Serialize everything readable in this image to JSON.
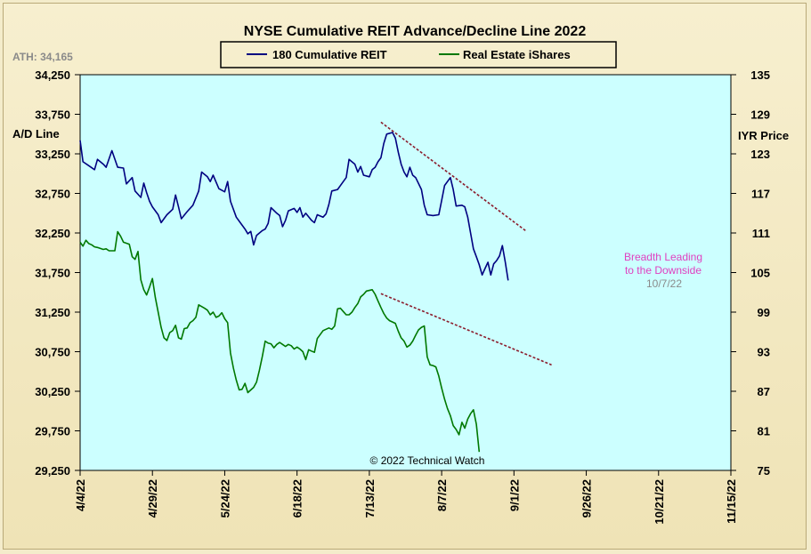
{
  "chart_data": {
    "type": "line",
    "title": "NYSE Cumulative  REIT Advance/Decline  Line  2022",
    "ath_label": "ATH: 34,165",
    "left_axis": {
      "label": "A/D Line",
      "ticks": [
        "34,250",
        "33,750",
        "33,250",
        "32,750",
        "32,250",
        "31,750",
        "31,250",
        "30,750",
        "30,250",
        "29,750",
        "29,250"
      ],
      "range": [
        29250,
        34250
      ]
    },
    "right_axis": {
      "label": "IYR Price",
      "ticks": [
        "135",
        "129",
        "123",
        "117",
        "111",
        "105",
        "99",
        "93",
        "87",
        "81",
        "75"
      ],
      "range": [
        75,
        135
      ]
    },
    "x_axis": {
      "ticks": [
        "4/4/22",
        "4/29/22",
        "5/24/22",
        "6/18/22",
        "7/13/22",
        "8/7/22",
        "9/1/22",
        "9/26/22",
        "10/21/22",
        "11/15/22"
      ],
      "range_days": [
        0,
        225
      ],
      "tick_days": [
        0,
        25,
        50,
        75,
        100,
        125,
        150,
        175,
        200,
        225
      ]
    },
    "legend": {
      "position": "top-center",
      "series_labels": [
        "180 Cumulative REIT",
        "Real Estate iShares"
      ]
    },
    "grid": false,
    "series": [
      {
        "name": "180 Cumulative REIT",
        "axis": "left",
        "color": "#000080",
        "points": [
          [
            0,
            33420
          ],
          [
            1,
            33150
          ],
          [
            3,
            33100
          ],
          [
            5,
            33050
          ],
          [
            6,
            33180
          ],
          [
            8,
            33120
          ],
          [
            9,
            33080
          ],
          [
            11,
            33290
          ],
          [
            13,
            33080
          ],
          [
            15,
            33070
          ],
          [
            16,
            32870
          ],
          [
            18,
            32950
          ],
          [
            19,
            32780
          ],
          [
            21,
            32700
          ],
          [
            22,
            32880
          ],
          [
            23,
            32760
          ],
          [
            24,
            32650
          ],
          [
            25,
            32580
          ],
          [
            27,
            32480
          ],
          [
            28,
            32380
          ],
          [
            30,
            32480
          ],
          [
            32,
            32550
          ],
          [
            33,
            32730
          ],
          [
            34,
            32580
          ],
          [
            35,
            32430
          ],
          [
            37,
            32520
          ],
          [
            39,
            32600
          ],
          [
            41,
            32780
          ],
          [
            42,
            33020
          ],
          [
            44,
            32960
          ],
          [
            45,
            32900
          ],
          [
            46,
            32980
          ],
          [
            48,
            32810
          ],
          [
            50,
            32770
          ],
          [
            51,
            32900
          ],
          [
            52,
            32650
          ],
          [
            54,
            32450
          ],
          [
            56,
            32350
          ],
          [
            57,
            32300
          ],
          [
            58,
            32240
          ],
          [
            59,
            32270
          ],
          [
            60,
            32100
          ],
          [
            61,
            32220
          ],
          [
            63,
            32280
          ],
          [
            64,
            32300
          ],
          [
            65,
            32370
          ],
          [
            66,
            32570
          ],
          [
            68,
            32500
          ],
          [
            69,
            32470
          ],
          [
            70,
            32330
          ],
          [
            71,
            32410
          ],
          [
            72,
            32530
          ],
          [
            74,
            32560
          ],
          [
            75,
            32510
          ],
          [
            76,
            32570
          ],
          [
            77,
            32450
          ],
          [
            78,
            32500
          ],
          [
            80,
            32410
          ],
          [
            81,
            32380
          ],
          [
            82,
            32480
          ],
          [
            84,
            32450
          ],
          [
            85,
            32490
          ],
          [
            86,
            32610
          ],
          [
            87,
            32780
          ],
          [
            89,
            32800
          ],
          [
            91,
            32900
          ],
          [
            92,
            32950
          ],
          [
            93,
            33180
          ],
          [
            95,
            33120
          ],
          [
            96,
            33020
          ],
          [
            97,
            33090
          ],
          [
            98,
            32980
          ],
          [
            100,
            32960
          ],
          [
            101,
            33050
          ],
          [
            102,
            33080
          ],
          [
            103,
            33150
          ],
          [
            104,
            33200
          ],
          [
            105,
            33380
          ],
          [
            106,
            33500
          ],
          [
            108,
            33520
          ],
          [
            109,
            33450
          ],
          [
            110,
            33270
          ],
          [
            111,
            33120
          ],
          [
            112,
            33020
          ],
          [
            113,
            32960
          ],
          [
            114,
            33080
          ],
          [
            115,
            32980
          ],
          [
            116,
            32950
          ],
          [
            118,
            32800
          ],
          [
            119,
            32600
          ],
          [
            120,
            32480
          ],
          [
            122,
            32470
          ],
          [
            124,
            32480
          ],
          [
            125,
            32660
          ],
          [
            126,
            32850
          ],
          [
            128,
            32950
          ],
          [
            129,
            32800
          ],
          [
            130,
            32590
          ],
          [
            132,
            32600
          ],
          [
            133,
            32580
          ],
          [
            134,
            32450
          ],
          [
            135,
            32250
          ],
          [
            136,
            32050
          ],
          [
            137,
            31950
          ],
          [
            138,
            31850
          ],
          [
            139,
            31720
          ],
          [
            140,
            31800
          ],
          [
            141,
            31880
          ],
          [
            142,
            31720
          ],
          [
            143,
            31860
          ],
          [
            144,
            31900
          ],
          [
            145,
            31960
          ],
          [
            146,
            32090
          ],
          [
            147,
            31880
          ],
          [
            148,
            31650
          ]
        ]
      },
      {
        "name": "Real Estate iShares",
        "axis": "right",
        "color": "#007800",
        "points": [
          [
            0,
            109.6
          ],
          [
            1,
            109.0
          ],
          [
            2,
            109.9
          ],
          [
            3,
            109.4
          ],
          [
            4,
            109.2
          ],
          [
            5,
            108.9
          ],
          [
            6,
            108.8
          ],
          [
            8,
            108.5
          ],
          [
            9,
            108.6
          ],
          [
            10,
            108.3
          ],
          [
            12,
            108.3
          ],
          [
            13,
            111.2
          ],
          [
            14,
            110.5
          ],
          [
            15,
            109.6
          ],
          [
            17,
            109.3
          ],
          [
            18,
            107.4
          ],
          [
            19,
            107.0
          ],
          [
            20,
            108.2
          ],
          [
            21,
            103.9
          ],
          [
            22,
            102.4
          ],
          [
            23,
            101.6
          ],
          [
            24,
            102.8
          ],
          [
            25,
            104.1
          ],
          [
            26,
            101.2
          ],
          [
            28,
            96.7
          ],
          [
            29,
            95.1
          ],
          [
            30,
            94.7
          ],
          [
            31,
            95.9
          ],
          [
            32,
            96.2
          ],
          [
            33,
            97.0
          ],
          [
            34,
            95.1
          ],
          [
            35,
            94.9
          ],
          [
            36,
            96.5
          ],
          [
            37,
            96.6
          ],
          [
            38,
            97.4
          ],
          [
            39,
            97.7
          ],
          [
            40,
            98.2
          ],
          [
            41,
            100.1
          ],
          [
            43,
            99.6
          ],
          [
            44,
            99.3
          ],
          [
            45,
            98.6
          ],
          [
            46,
            99.0
          ],
          [
            47,
            98.2
          ],
          [
            48,
            98.4
          ],
          [
            49,
            98.9
          ],
          [
            50,
            98.0
          ],
          [
            51,
            97.4
          ],
          [
            52,
            92.8
          ],
          [
            53,
            90.5
          ],
          [
            54,
            88.7
          ],
          [
            55,
            87.2
          ],
          [
            56,
            87.3
          ],
          [
            57,
            88.2
          ],
          [
            58,
            86.8
          ],
          [
            59,
            87.2
          ],
          [
            60,
            87.6
          ],
          [
            61,
            88.4
          ],
          [
            62,
            90.2
          ],
          [
            63,
            92.3
          ],
          [
            64,
            94.6
          ],
          [
            65,
            94.3
          ],
          [
            66,
            94.2
          ],
          [
            67,
            93.6
          ],
          [
            68,
            94.1
          ],
          [
            69,
            94.4
          ],
          [
            70,
            94.1
          ],
          [
            71,
            93.8
          ],
          [
            72,
            94.1
          ],
          [
            73,
            93.9
          ],
          [
            74,
            93.4
          ],
          [
            75,
            93.7
          ],
          [
            76,
            93.4
          ],
          [
            77,
            93.0
          ],
          [
            78,
            91.8
          ],
          [
            79,
            93.3
          ],
          [
            80,
            93.1
          ],
          [
            81,
            92.9
          ],
          [
            82,
            95.0
          ],
          [
            84,
            96.2
          ],
          [
            86,
            96.6
          ],
          [
            87,
            96.4
          ],
          [
            88,
            96.9
          ],
          [
            89,
            99.5
          ],
          [
            90,
            99.6
          ],
          [
            91,
            99.1
          ],
          [
            92,
            98.6
          ],
          [
            93,
            98.6
          ],
          [
            94,
            99.0
          ],
          [
            95,
            99.7
          ],
          [
            96,
            100.3
          ],
          [
            97,
            101.3
          ],
          [
            98,
            101.7
          ],
          [
            99,
            102.2
          ],
          [
            101,
            102.4
          ],
          [
            102,
            101.7
          ],
          [
            103,
            100.7
          ],
          [
            104,
            99.7
          ],
          [
            105,
            98.8
          ],
          [
            106,
            98.1
          ],
          [
            107,
            97.7
          ],
          [
            108,
            97.5
          ],
          [
            109,
            97.3
          ],
          [
            110,
            96.1
          ],
          [
            111,
            95.1
          ],
          [
            112,
            94.6
          ],
          [
            113,
            93.7
          ],
          [
            114,
            94.0
          ],
          [
            115,
            94.6
          ],
          [
            116,
            95.5
          ],
          [
            117,
            96.3
          ],
          [
            118,
            96.7
          ],
          [
            119,
            96.9
          ],
          [
            120,
            92.2
          ],
          [
            121,
            91.0
          ],
          [
            122,
            90.9
          ],
          [
            123,
            90.7
          ],
          [
            124,
            89.3
          ],
          [
            125,
            87.5
          ],
          [
            126,
            85.8
          ],
          [
            127,
            84.4
          ],
          [
            128,
            83.3
          ],
          [
            129,
            81.8
          ],
          [
            130,
            81.2
          ],
          [
            131,
            80.4
          ],
          [
            132,
            82.3
          ],
          [
            133,
            81.4
          ],
          [
            134,
            82.8
          ],
          [
            135,
            83.6
          ],
          [
            136,
            84.2
          ],
          [
            137,
            82.0
          ],
          [
            138,
            77.8
          ]
        ]
      }
    ],
    "trendlines": [
      {
        "from": [
          104,
          33650
        ],
        "to": [
          154,
          32280
        ],
        "axis": "left",
        "color": "#8b1c2c",
        "style": "dashed"
      },
      {
        "from": [
          104,
          101.8
        ],
        "to": [
          163,
          91.0
        ],
        "axis": "right",
        "color": "#8b1c2c",
        "style": "dashed"
      }
    ],
    "annotations": [
      {
        "text": "Breadth Leading",
        "color": "#e040c0"
      },
      {
        "text": "to the Downside",
        "color": "#e040c0"
      },
      {
        "text": "10/7/22",
        "color": "#8a8a8a"
      }
    ],
    "credit": "© 2022 Technical  Watch",
    "plot_background": "#ccffff"
  }
}
